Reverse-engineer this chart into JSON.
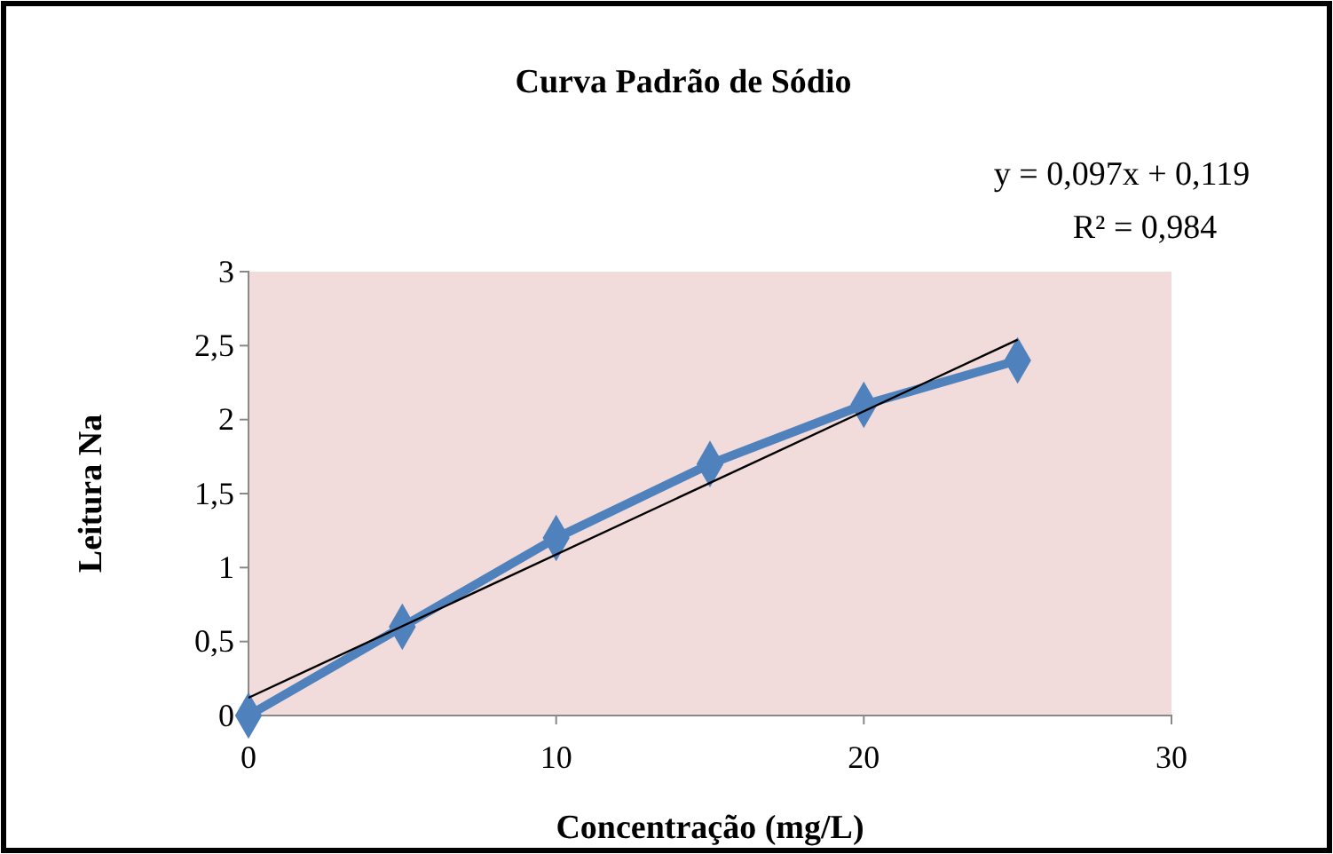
{
  "chart_data": {
    "type": "line",
    "title": "Curva Padrão de Sódio",
    "xlabel": "Concentração (mg/L)",
    "ylabel": "Leitura  Na",
    "x": [
      0,
      5,
      10,
      15,
      20,
      25
    ],
    "series": [
      {
        "color": "#4f81bd",
        "values": [
          0,
          0.6,
          1.2,
          1.7,
          2.1,
          2.4
        ],
        "marker": "diamond"
      },
      {
        "type": "line",
        "color": "#000000",
        "x": [
          0,
          25
        ],
        "values": [
          0.12,
          2.54
        ],
        "marker": "none"
      }
    ],
    "xlim": [
      0,
      30
    ],
    "xticks": [
      0,
      10,
      20,
      30
    ],
    "ylim": [
      0,
      3
    ],
    "yticks": [
      0,
      {
        "value": 0.5,
        "label": "0,5"
      },
      1,
      {
        "value": 1.5,
        "label": "1,5"
      },
      2,
      {
        "value": 2.5,
        "label": "2,5"
      },
      3
    ],
    "grid": false,
    "annotations": [
      "y = 0,097x + 0,119",
      "R² = 0,984"
    ]
  }
}
